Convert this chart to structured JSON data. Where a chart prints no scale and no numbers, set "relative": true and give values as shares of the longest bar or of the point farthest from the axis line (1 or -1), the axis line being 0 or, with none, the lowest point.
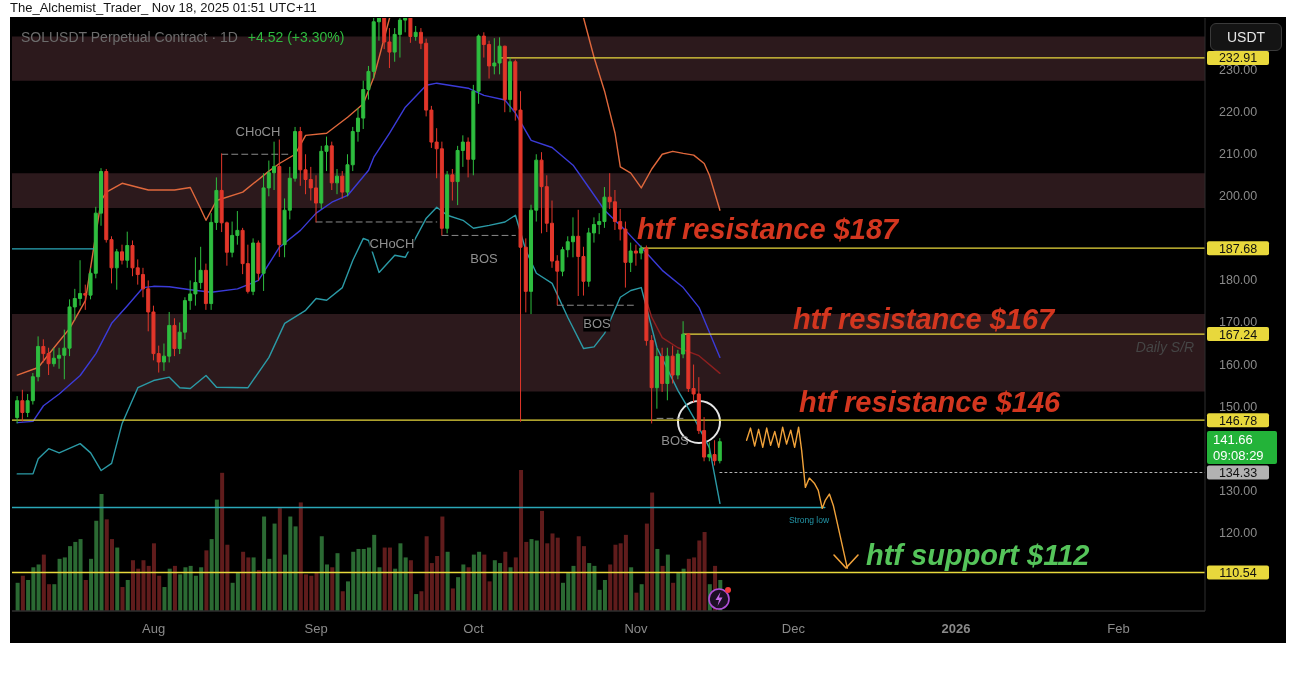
{
  "chart_data": [
    {
      "type": "candlestick",
      "title": "SOLUSDT Perpetual Contract · 1D",
      "subtitle": "The_Alchemist_Trader_ Nov 18, 2025 01:51 UTC+11",
      "x": [
        "2025-07-06",
        "2025-07-07",
        "2025-07-08",
        "2025-07-09",
        "2025-07-10",
        "2025-07-11",
        "2025-07-12",
        "2025-07-13",
        "2025-07-14",
        "2025-07-15",
        "2025-07-16",
        "2025-07-17",
        "2025-07-18",
        "2025-07-19",
        "2025-07-20",
        "2025-07-21",
        "2025-07-22",
        "2025-07-23",
        "2025-07-24",
        "2025-07-25",
        "2025-07-26",
        "2025-07-27",
        "2025-07-28",
        "2025-07-29",
        "2025-07-30",
        "2025-07-31",
        "2025-08-01",
        "2025-08-02",
        "2025-08-03",
        "2025-08-04",
        "2025-08-05",
        "2025-08-06",
        "2025-08-07",
        "2025-08-08",
        "2025-08-09",
        "2025-08-10",
        "2025-08-11",
        "2025-08-12",
        "2025-08-13",
        "2025-08-14",
        "2025-08-15",
        "2025-08-16",
        "2025-08-17",
        "2025-08-18",
        "2025-08-19",
        "2025-08-20",
        "2025-08-21",
        "2025-08-22",
        "2025-08-23",
        "2025-08-24",
        "2025-08-25",
        "2025-08-26",
        "2025-08-27",
        "2025-08-28",
        "2025-08-29",
        "2025-08-30",
        "2025-08-31",
        "2025-09-01",
        "2025-09-02",
        "2025-09-03",
        "2025-09-04",
        "2025-09-05",
        "2025-09-06",
        "2025-09-07",
        "2025-09-08",
        "2025-09-09",
        "2025-09-10",
        "2025-09-11",
        "2025-09-12",
        "2025-09-13",
        "2025-09-14",
        "2025-09-15",
        "2025-09-16",
        "2025-09-17",
        "2025-09-18",
        "2025-09-19",
        "2025-09-20",
        "2025-09-21",
        "2025-09-22",
        "2025-09-23",
        "2025-09-24",
        "2025-09-25",
        "2025-09-26",
        "2025-09-27",
        "2025-09-28",
        "2025-09-29",
        "2025-09-30",
        "2025-10-01",
        "2025-10-02",
        "2025-10-03",
        "2025-10-04",
        "2025-10-05",
        "2025-10-06",
        "2025-10-07",
        "2025-10-08",
        "2025-10-09",
        "2025-10-10",
        "2025-10-11",
        "2025-10-12",
        "2025-10-13",
        "2025-10-14",
        "2025-10-15",
        "2025-10-16",
        "2025-10-17",
        "2025-10-18",
        "2025-10-19",
        "2025-10-20",
        "2025-10-21",
        "2025-10-22",
        "2025-10-23",
        "2025-10-24",
        "2025-10-25",
        "2025-10-26",
        "2025-10-27",
        "2025-10-28",
        "2025-10-29",
        "2025-10-30",
        "2025-10-31",
        "2025-11-01",
        "2025-11-02",
        "2025-11-03",
        "2025-11-04",
        "2025-11-05",
        "2025-11-06",
        "2025-11-07",
        "2025-11-08",
        "2025-11-09",
        "2025-11-10",
        "2025-11-11",
        "2025-11-12",
        "2025-11-13",
        "2025-11-14",
        "2025-11-15",
        "2025-11-16",
        "2025-11-17"
      ],
      "ohlc": [
        [
          147.4,
          152.5,
          146,
          151.4
        ],
        [
          151.4,
          154,
          146.5,
          148.6
        ],
        [
          148.6,
          153,
          147.5,
          151.4
        ],
        [
          151.4,
          158,
          150.5,
          157.1
        ],
        [
          157.1,
          166.7,
          156,
          164.3
        ],
        [
          164.3,
          166,
          160.5,
          162.6
        ],
        [
          162.6,
          164,
          157.5,
          160.2
        ],
        [
          160.2,
          164,
          159.5,
          161.5
        ],
        [
          161.5,
          164,
          159,
          162.2
        ],
        [
          162.2,
          168.3,
          156.5,
          163.9
        ],
        [
          163.9,
          175.5,
          162,
          173.7
        ],
        [
          173.7,
          178,
          170.5,
          175.7
        ],
        [
          175.7,
          184.8,
          174,
          176.9
        ],
        [
          176.9,
          179,
          173,
          176.5
        ],
        [
          176.5,
          183,
          175.5,
          181.7
        ],
        [
          181.7,
          197.5,
          180.5,
          196
        ],
        [
          196,
          206.7,
          193,
          205.9
        ],
        [
          205.9,
          206.5,
          189,
          189.7
        ],
        [
          189.7,
          190.5,
          179.3,
          183
        ],
        [
          183,
          187.5,
          177.8,
          186.8
        ],
        [
          186.8,
          188.5,
          183.8,
          184.8
        ],
        [
          184.8,
          191.6,
          183,
          188.3
        ],
        [
          188.3,
          189.5,
          181,
          183
        ],
        [
          183,
          185,
          179,
          181.4
        ],
        [
          181.4,
          183,
          176,
          178
        ],
        [
          178,
          180,
          167.9,
          172.5
        ],
        [
          172.5,
          174,
          161,
          162.6
        ],
        [
          162.6,
          164.5,
          158.1,
          160.6
        ],
        [
          160.6,
          165,
          158.5,
          162
        ],
        [
          162,
          172.5,
          160.5,
          169.3
        ],
        [
          169.3,
          171,
          162,
          163.8
        ],
        [
          163.8,
          170,
          162.5,
          167.7
        ],
        [
          167.7,
          176,
          166,
          175.2
        ],
        [
          175.2,
          180,
          173,
          176.8
        ],
        [
          176.8,
          185.5,
          174,
          179.5
        ],
        [
          179.5,
          188,
          178,
          182.4
        ],
        [
          182.4,
          184,
          173,
          174.5
        ],
        [
          174.5,
          196,
          173,
          193.8
        ],
        [
          193.8,
          204.5,
          192,
          201.4
        ],
        [
          201.4,
          210.2,
          191.5,
          193.7
        ],
        [
          193.7,
          194,
          183.5,
          186.7
        ],
        [
          186.7,
          194,
          185.5,
          190.7
        ],
        [
          190.7,
          196.5,
          188.5,
          191.9
        ],
        [
          191.9,
          192.5,
          181.5,
          184
        ],
        [
          184,
          188.5,
          176.9,
          177.4
        ],
        [
          177.4,
          190,
          176.5,
          188.9
        ],
        [
          188.9,
          189.5,
          179.9,
          181.7
        ],
        [
          181.7,
          205.5,
          177.5,
          202
        ],
        [
          202,
          208.5,
          200,
          205.6
        ],
        [
          205.6,
          213,
          201.5,
          207.1
        ],
        [
          207.1,
          213.5,
          185.6,
          188.5
        ],
        [
          188.5,
          199.5,
          185.5,
          196.7
        ],
        [
          196.7,
          207,
          194.5,
          204.3
        ],
        [
          204.3,
          216.5,
          203.5,
          215.4
        ],
        [
          215.4,
          216.5,
          202.5,
          206.3
        ],
        [
          206.3,
          210,
          200.5,
          204
        ],
        [
          204,
          207,
          199,
          202
        ],
        [
          202,
          205,
          193.8,
          198.4
        ],
        [
          198.4,
          212,
          197,
          210.7
        ],
        [
          210.7,
          214.2,
          206,
          212
        ],
        [
          212,
          213,
          201.5,
          203.2
        ],
        [
          203.2,
          206.5,
          200.5,
          204.8
        ],
        [
          204.8,
          206,
          199.5,
          201
        ],
        [
          201,
          210,
          200,
          207.5
        ],
        [
          207.5,
          216.5,
          206,
          215.4
        ],
        [
          215.4,
          221,
          213,
          218.6
        ],
        [
          218.6,
          227.5,
          216,
          225.4
        ],
        [
          225.4,
          231,
          223,
          229.7
        ],
        [
          229.7,
          242.4,
          228,
          241.5
        ],
        [
          241.5,
          242.4,
          237,
          242.4
        ],
        [
          242.4,
          242.4,
          235,
          236.7
        ],
        [
          236.7,
          240,
          230.5,
          234.3
        ],
        [
          234.3,
          240,
          232,
          238.5
        ],
        [
          238.5,
          242.4,
          233,
          241.9
        ],
        [
          241.9,
          242.4,
          239,
          242.4
        ],
        [
          242.4,
          242.4,
          236.5,
          238
        ],
        [
          238,
          240.5,
          237,
          239
        ],
        [
          239,
          240,
          235,
          236.4
        ],
        [
          236.4,
          237.5,
          219,
          220.5
        ],
        [
          220.5,
          221.5,
          211.5,
          212.9
        ],
        [
          212.9,
          216.2,
          204.3,
          211.3
        ],
        [
          211.3,
          213,
          190.7,
          192.4
        ],
        [
          192.4,
          206,
          191.2,
          205.1
        ],
        [
          205.1,
          206.5,
          199,
          203.5
        ],
        [
          203.5,
          212,
          197.9,
          210.9
        ],
        [
          210.9,
          214.5,
          207,
          212.9
        ],
        [
          212.9,
          214,
          204.5,
          208.8
        ],
        [
          208.8,
          226.5,
          205,
          225
        ],
        [
          225,
          238.5,
          222,
          238.1
        ],
        [
          238.1,
          239,
          233,
          236.1
        ],
        [
          236.1,
          237,
          228,
          231
        ],
        [
          231,
          237.6,
          229,
          231.7
        ],
        [
          231.7,
          237.8,
          229,
          235.7
        ],
        [
          235.7,
          235.8,
          220,
          223
        ],
        [
          223,
          233,
          220,
          232
        ],
        [
          232,
          232.5,
          218,
          220.5
        ],
        [
          220.5,
          225,
          146.4,
          187.9
        ],
        [
          187.9,
          190,
          172.4,
          177.4
        ],
        [
          177.4,
          198,
          172,
          196.7
        ],
        [
          196.7,
          210,
          194,
          208.6
        ],
        [
          208.6,
          210.5,
          191.2,
          202.3
        ],
        [
          202.3,
          205,
          191.5,
          193.6
        ],
        [
          193.6,
          199,
          183,
          184.6
        ],
        [
          184.6,
          186,
          174.1,
          182.2
        ],
        [
          182.2,
          188,
          181,
          187.3
        ],
        [
          187.3,
          190.5,
          185.5,
          189.2
        ],
        [
          189.2,
          195,
          185.5,
          190.5
        ],
        [
          190.5,
          196.8,
          176.3,
          185.7
        ],
        [
          185.7,
          188,
          176.4,
          179.8
        ],
        [
          179.8,
          192.5,
          178.5,
          191.3
        ],
        [
          191.3,
          195,
          189,
          193.3
        ],
        [
          193.3,
          196,
          191,
          194
        ],
        [
          194,
          202.2,
          192.5,
          199.8
        ],
        [
          199.8,
          205.5,
          197,
          198.7
        ],
        [
          198.7,
          201.5,
          192,
          194
        ],
        [
          194,
          197,
          189.5,
          192.2
        ],
        [
          192.2,
          194,
          178.3,
          184.3
        ],
        [
          184.3,
          189,
          182,
          187
        ],
        [
          187,
          188.5,
          183.5,
          186.5
        ],
        [
          186.5,
          188.3,
          185,
          187.7
        ],
        [
          187.7,
          188.3,
          164.5,
          165.7
        ],
        [
          165.7,
          167,
          146,
          154.5
        ],
        [
          154.5,
          163.9,
          149.5,
          161.9
        ],
        [
          161.9,
          164,
          153.5,
          155.5
        ],
        [
          155.5,
          164,
          151.5,
          162
        ],
        [
          162,
          164.5,
          155.5,
          157.5
        ],
        [
          157.5,
          163.5,
          156.5,
          162.5
        ],
        [
          162.5,
          170.3,
          161.5,
          167.2
        ],
        [
          167.2,
          167.5,
          153.5,
          154.3
        ],
        [
          154.3,
          160,
          151,
          153
        ],
        [
          153,
          157,
          143.5,
          144.3
        ],
        [
          144.3,
          147.5,
          137,
          138
        ],
        [
          138,
          141.5,
          137,
          138.6
        ],
        [
          138.6,
          142,
          136,
          137.14
        ],
        [
          137.14,
          142.5,
          136.5,
          141.66
        ]
      ],
      "colors": [
        "#2ebd3f",
        "#e2362a",
        "#2ebd3f",
        "#2ebd3f",
        "#2ebd3f",
        "#e2362a",
        "#e2362a",
        "#2ebd3f",
        "#2ebd3f",
        "#2ebd3f",
        "#2ebd3f",
        "#2ebd3f",
        "#2ebd3f",
        "#e2362a",
        "#2ebd3f",
        "#2ebd3f",
        "#2ebd3f",
        "#e2362a",
        "#e2362a",
        "#2ebd3f",
        "#e2362a",
        "#2ebd3f",
        "#e2362a",
        "#e2362a",
        "#e2362a",
        "#e2362a",
        "#e2362a",
        "#e2362a",
        "#2ebd3f",
        "#2ebd3f",
        "#e2362a",
        "#2ebd3f",
        "#2ebd3f",
        "#2ebd3f",
        "#2ebd3f",
        "#2ebd3f",
        "#e2362a",
        "#2ebd3f",
        "#2ebd3f",
        "#e2362a",
        "#e2362a",
        "#2ebd3f",
        "#2ebd3f",
        "#e2362a",
        "#e2362a",
        "#2ebd3f",
        "#e2362a",
        "#2ebd3f",
        "#2ebd3f",
        "#2ebd3f",
        "#e2362a",
        "#2ebd3f",
        "#2ebd3f",
        "#2ebd3f",
        "#e2362a",
        "#e2362a",
        "#e2362a",
        "#e2362a",
        "#2ebd3f",
        "#2ebd3f",
        "#e2362a",
        "#2ebd3f",
        "#e2362a",
        "#2ebd3f",
        "#2ebd3f",
        "#2ebd3f",
        "#2ebd3f",
        "#2ebd3f",
        "#2ebd3f",
        "#2ebd3f",
        "#e2362a",
        "#e2362a",
        "#2ebd3f",
        "#2ebd3f",
        "#2ebd3f",
        "#e2362a",
        "#2ebd3f",
        "#e2362a",
        "#e2362a",
        "#e2362a",
        "#e2362a",
        "#e2362a",
        "#2ebd3f",
        "#e2362a",
        "#2ebd3f",
        "#2ebd3f",
        "#e2362a",
        "#2ebd3f",
        "#2ebd3f",
        "#e2362a",
        "#e2362a",
        "#2ebd3f",
        "#2ebd3f",
        "#e2362a",
        "#2ebd3f",
        "#e2362a",
        "#e2362a",
        "#e2362a",
        "#2ebd3f",
        "#2ebd3f",
        "#e2362a",
        "#e2362a",
        "#e2362a",
        "#e2362a",
        "#2ebd3f",
        "#2ebd3f",
        "#2ebd3f",
        "#e2362a",
        "#e2362a",
        "#2ebd3f",
        "#2ebd3f",
        "#2ebd3f",
        "#2ebd3f",
        "#e2362a",
        "#e2362a",
        "#e2362a",
        "#e2362a",
        "#2ebd3f",
        "#e2362a",
        "#2ebd3f",
        "#e2362a",
        "#e2362a",
        "#2ebd3f",
        "#e2362a",
        "#2ebd3f",
        "#e2362a",
        "#2ebd3f",
        "#2ebd3f",
        "#e2362a",
        "#e2362a",
        "#e2362a",
        "#e2362a",
        "#2ebd3f",
        "#e2362a",
        "#2ebd3f"
      ],
      "series": [
        {
          "type": "line",
          "color": "#e0683c",
          "x": [
            "2025-07-06",
            "2025-07-10",
            "2025-07-13",
            "2025-07-16",
            "2025-07-19",
            "2025-07-22",
            "2025-07-23",
            "2025-07-26",
            "2025-07-31",
            "2025-08-05",
            "2025-08-08",
            "2025-08-10",
            "2025-08-11",
            "2025-08-13",
            "2025-08-18",
            "2025-08-23",
            "2025-08-25",
            "2025-08-28",
            "2025-08-30",
            "2025-09-03",
            "2025-09-07",
            "2025-09-10",
            "2025-09-12",
            "2025-09-15",
            "2025-10-01",
            "2025-10-22",
            "2025-10-24",
            "2025-10-26",
            "2025-10-28",
            "2025-10-29",
            "2025-10-31",
            "2025-11-02",
            "2025-11-04",
            "2025-11-06",
            "2025-11-08",
            "2025-11-10",
            "2025-11-12",
            "2025-11-14",
            "2025-11-15",
            "2025-11-17"
          ],
          "values": [
            157.5,
            159.3,
            164,
            168.6,
            175.2,
            199,
            201,
            203.1,
            201.5,
            201.5,
            202.1,
            197,
            194.3,
            199,
            201,
            206,
            207.8,
            210,
            214.5,
            215,
            218.8,
            222,
            228.3,
            242.4,
            null,
            242.4,
            233,
            225,
            215,
            207,
            205.5,
            202,
            206.5,
            210,
            210.7,
            210.2,
            209.8,
            207.8,
            205,
            196.7
          ]
        },
        {
          "type": "line",
          "color": "#3b3bd8",
          "x": [
            "2025-07-06",
            "2025-07-09",
            "2025-07-11",
            "2025-07-14",
            "2025-07-18",
            "2025-07-21",
            "2025-07-24",
            "2025-07-27",
            "2025-07-30",
            "2025-08-01",
            "2025-08-04",
            "2025-08-08",
            "2025-08-12",
            "2025-08-17",
            "2025-08-21",
            "2025-08-25",
            "2025-08-29",
            "2025-09-01",
            "2025-09-04",
            "2025-09-07",
            "2025-09-11",
            "2025-09-12",
            "2025-09-15",
            "2025-09-18",
            "2025-09-22",
            "2025-09-24",
            "2025-09-30",
            "2025-10-03",
            "2025-10-07",
            "2025-10-09",
            "2025-10-12",
            "2025-10-16",
            "2025-10-20",
            "2025-10-23",
            "2025-10-26",
            "2025-10-30",
            "2025-11-02",
            "2025-11-06",
            "2025-11-10",
            "2025-11-13",
            "2025-11-17"
          ],
          "values": [
            146.2,
            146.5,
            150.2,
            153,
            157.4,
            162.6,
            169.8,
            174,
            178.3,
            178.6,
            178.5,
            177.8,
            177.2,
            178,
            180,
            187.9,
            191.9,
            196,
            198.6,
            200.2,
            206.2,
            209.3,
            215,
            221.2,
            226.4,
            226.9,
            225.7,
            224,
            222.9,
            219.8,
            213.3,
            211.6,
            207.4,
            202.1,
            196.7,
            191.9,
            187.9,
            182.4,
            178.3,
            173.6,
            161.7
          ]
        },
        {
          "type": "line",
          "color": "#2b9aa6",
          "x": [
            "2025-07-06",
            "2025-07-09",
            "2025-07-10",
            "2025-07-12",
            "2025-07-14",
            "2025-07-18",
            "2025-07-20",
            "2025-07-22",
            "2025-07-24",
            "2025-07-26",
            "2025-07-29",
            "2025-08-01",
            "2025-08-04",
            "2025-08-06",
            "2025-08-08",
            "2025-08-11",
            "2025-08-13",
            "2025-08-19",
            "2025-08-23",
            "2025-08-26",
            "2025-08-30",
            "2025-09-01",
            "2025-09-03",
            "2025-09-06",
            "2025-09-08",
            "2025-09-10",
            "2025-09-11",
            "2025-09-13",
            "2025-09-16",
            "2025-09-18",
            "2025-09-22",
            "2025-09-24",
            "2025-09-26",
            "2025-09-29",
            "2025-10-01",
            "2025-10-04",
            "2025-10-07",
            "2025-10-09",
            "2025-10-11",
            "2025-10-13",
            "2025-10-16",
            "2025-10-19",
            "2025-10-22",
            "2025-10-24",
            "2025-10-26",
            "2025-10-29",
            "2025-10-31",
            "2025-11-02",
            "2025-11-05",
            "2025-11-09",
            "2025-11-12",
            "2025-11-15",
            "2025-11-17"
          ],
          "values": [
            134,
            134,
            137.6,
            140,
            139,
            141.2,
            139,
            134.8,
            136.5,
            146,
            154.5,
            156.2,
            157,
            154.5,
            154.3,
            157.4,
            154.6,
            154.5,
            161.7,
            169.8,
            172.9,
            175.7,
            175.3,
            178.3,
            184.8,
            190,
            189.5,
            181.9,
            186,
            185.5,
            194.8,
            197.4,
            195.5,
            194.3,
            192.4,
            193.1,
            193.9,
            195.5,
            187.1,
            181.7,
            179.3,
            171.2,
            163.8,
            164.2,
            167.4,
            176,
            177.6,
            178.3,
            164,
            153.8,
            147.4,
            140.2,
            127
          ]
        },
        {
          "type": "line",
          "color": "#8e1f1f",
          "x": [
            "2025-11-03",
            "2025-11-04",
            "2025-11-06",
            "2025-11-09",
            "2025-11-13",
            "2025-11-17"
          ],
          "values": [
            175.2,
            171.2,
            166.4,
            164,
            162.1,
            157.9
          ]
        },
        {
          "type": "line",
          "color": "#8a8a8a",
          "line_style": "dashed",
          "x": [
            "2025-08-14",
            "2025-08-27"
          ],
          "values": [
            210,
            210
          ]
        },
        {
          "type": "line",
          "color": "#8a8a8a",
          "line_style": "dashed",
          "x": [
            "2025-09-01",
            "2025-09-24"
          ],
          "values": [
            193.9,
            193.9
          ]
        },
        {
          "type": "line",
          "color": "#8a8a8a",
          "line_style": "dashed",
          "x": [
            "2025-09-25",
            "2025-10-09"
          ],
          "values": [
            190.7,
            190.7
          ]
        },
        {
          "type": "line",
          "color": "#8a8a8a",
          "line_style": "dashed",
          "x": [
            "2025-10-17",
            "2025-11-01"
          ],
          "values": [
            174.1,
            174.1
          ]
        },
        {
          "type": "line",
          "color": "#8a8a8a",
          "line_style": "dashed",
          "x": [
            "2025-11-05",
            "2025-11-10"
          ],
          "values": [
            147.2,
            147.2
          ]
        },
        {
          "type": "line",
          "color": "#2aa7b8",
          "x": [
            "2025-07-05",
            "2025-07-21"
          ],
          "values": [
            187.5,
            187.5
          ]
        },
        {
          "type": "line",
          "color": "#2aa7b8",
          "x": [
            "2025-07-05",
            "2025-12-07"
          ],
          "values": [
            126,
            126
          ]
        },
        {
          "type": "line",
          "color": "#b2b2b2",
          "line_style": "dotted",
          "x": [
            "2025-11-17",
            "2026-02-17T12:00"
          ],
          "values": [
            134.33,
            134.33
          ],
          "value_labels": [
            null,
            "134.33"
          ]
        },
        {
          "type": "line",
          "color": "#e8d83c",
          "x": [
            "2025-10-06",
            "2026-02-17T12:00"
          ],
          "values": [
            232.91,
            232.91
          ],
          "value_labels": [
            null,
            "232.91"
          ]
        },
        {
          "type": "line",
          "color": "#e8d83c",
          "x": [
            "2025-11-02",
            "2026-02-17T12:00"
          ],
          "values": [
            187.68,
            187.68
          ],
          "value_labels": [
            null,
            "187.68"
          ]
        },
        {
          "type": "line",
          "color": "#e8d83c",
          "x": [
            "2025-11-10",
            "2026-02-17T12:00"
          ],
          "values": [
            167.24,
            167.24
          ],
          "value_labels": [
            null,
            "167.24"
          ]
        },
        {
          "type": "line",
          "color": "#e8d83c",
          "x": [
            "2025-07-05",
            "2026-02-17T12:00"
          ],
          "values": [
            146.78,
            146.78
          ],
          "value_labels": [
            null,
            "146.78"
          ]
        },
        {
          "type": "line",
          "color": "#e8d83c",
          "x": [
            "2025-07-05",
            "2026-02-17T12:00"
          ],
          "values": [
            110.54,
            110.54
          ],
          "value_labels": [
            null,
            "110.54"
          ]
        },
        {
          "type": "line",
          "color": "#f0a23a",
          "x": [
            "2025-11-22T02:00",
            "2025-11-22T20:00",
            "2025-11-23T15:00",
            "2025-11-24T09:00",
            "2025-11-25T04:00",
            "2025-11-25T22:00",
            "2025-11-26T16:00",
            "2025-11-27T11:00",
            "2025-11-28T05:00",
            "2025-11-28T23:00",
            "2025-11-29T17:00",
            "2025-11-30T12:00",
            "2025-12-01T06:00",
            "2025-12-02T00:00",
            "2025-12-02T14:00",
            "2025-12-03T07:00",
            "2025-12-04T01:00",
            "2025-12-05T00:00",
            "2025-12-05T18:00",
            "2025-12-06T12:00",
            "2025-12-07T02:00",
            "2025-12-07T21:00",
            "2025-12-08T15:00",
            "2025-12-09T01:00",
            "2025-12-11T07:00"
          ],
          "values": [
            142,
            144.9,
            140.6,
            144.6,
            140.3,
            144.9,
            140.8,
            144.1,
            140.3,
            145.1,
            141.1,
            144.4,
            140.3,
            145.1,
            139.6,
            130.8,
            133,
            131.8,
            130.1,
            125.8,
            127.7,
            129.2,
            126.5,
            124.2,
            111.6
          ]
        }
      ],
      "bands": [
        {
          "axis": "y",
          "from": 227.5,
          "to": 238,
          "color": "#2c191c"
        },
        {
          "axis": "y",
          "from": 197.2,
          "to": 205.5,
          "color": "#2c191c"
        },
        {
          "axis": "y",
          "from": 153.6,
          "to": 172,
          "color": "#2c191c"
        }
      ],
      "xlim": [
        "2025-07-05",
        "2026-02-17T12:00"
      ],
      "xticks": [
        {
          "value": "2025-08-01",
          "label": "Aug"
        },
        {
          "value": "2025-09-01",
          "label": "Sep"
        },
        {
          "value": "2025-10-01",
          "label": "Oct"
        },
        {
          "value": "2025-11-01",
          "label": "Nov"
        },
        {
          "value": "2025-12-01",
          "label": "Dec"
        },
        {
          "value": "2026-01-01",
          "label": "2026"
        },
        {
          "value": "2026-02-01",
          "label": "Feb"
        }
      ],
      "ylim": [
        101.4,
        242.4
      ],
      "yticks": [
        {
          "value": 120,
          "label": "120.00"
        },
        {
          "value": 130,
          "label": "130.00"
        },
        {
          "value": 150,
          "label": "150.00"
        },
        {
          "value": 160,
          "label": "160.00"
        },
        {
          "value": 170,
          "label": "170.00"
        },
        {
          "value": 180,
          "label": "180.00"
        },
        {
          "value": 200,
          "label": "200.00"
        },
        {
          "value": 210,
          "label": "210.00"
        },
        {
          "value": 220,
          "label": "220.00"
        },
        {
          "value": 230,
          "label": "230.00"
        }
      ],
      "annotations": [
        "+4.52 (+3.30%)",
        "USDT",
        "09:08:29",
        "141.66",
        "htf resistance $187",
        "htf resistance $167",
        "htf resistance $146",
        "htf support $112",
        "CHoCH",
        "CHoCH",
        "BOS",
        "BOS",
        "BOS",
        "Daily S/R",
        "Strong low"
      ]
    },
    {
      "type": "bar",
      "relative": true,
      "tick_labels": false,
      "x": [
        "2025-07-06",
        "2025-07-07",
        "2025-07-08",
        "2025-07-09",
        "2025-07-10",
        "2025-07-11",
        "2025-07-12",
        "2025-07-13",
        "2025-07-14",
        "2025-07-15",
        "2025-07-16",
        "2025-07-17",
        "2025-07-18",
        "2025-07-19",
        "2025-07-20",
        "2025-07-21",
        "2025-07-22",
        "2025-07-23",
        "2025-07-24",
        "2025-07-25",
        "2025-07-26",
        "2025-07-27",
        "2025-07-28",
        "2025-07-29",
        "2025-07-30",
        "2025-07-31",
        "2025-08-01",
        "2025-08-02",
        "2025-08-03",
        "2025-08-04",
        "2025-08-05",
        "2025-08-06",
        "2025-08-07",
        "2025-08-08",
        "2025-08-09",
        "2025-08-10",
        "2025-08-11",
        "2025-08-12",
        "2025-08-13",
        "2025-08-14",
        "2025-08-15",
        "2025-08-16",
        "2025-08-17",
        "2025-08-18",
        "2025-08-19",
        "2025-08-20",
        "2025-08-21",
        "2025-08-22",
        "2025-08-23",
        "2025-08-24",
        "2025-08-25",
        "2025-08-26",
        "2025-08-27",
        "2025-08-28",
        "2025-08-29",
        "2025-08-30",
        "2025-08-31",
        "2025-09-01",
        "2025-09-02",
        "2025-09-03",
        "2025-09-04",
        "2025-09-05",
        "2025-09-06",
        "2025-09-07",
        "2025-09-08",
        "2025-09-09",
        "2025-09-10",
        "2025-09-11",
        "2025-09-12",
        "2025-09-13",
        "2025-09-14",
        "2025-09-15",
        "2025-09-16",
        "2025-09-17",
        "2025-09-18",
        "2025-09-19",
        "2025-09-20",
        "2025-09-21",
        "2025-09-22",
        "2025-09-23",
        "2025-09-24",
        "2025-09-25",
        "2025-09-26",
        "2025-09-27",
        "2025-09-28",
        "2025-09-29",
        "2025-09-30",
        "2025-10-01",
        "2025-10-02",
        "2025-10-03",
        "2025-10-04",
        "2025-10-05",
        "2025-10-06",
        "2025-10-07",
        "2025-10-08",
        "2025-10-09",
        "2025-10-10",
        "2025-10-11",
        "2025-10-12",
        "2025-10-13",
        "2025-10-14",
        "2025-10-15",
        "2025-10-16",
        "2025-10-17",
        "2025-10-18",
        "2025-10-19",
        "2025-10-20",
        "2025-10-21",
        "2025-10-22",
        "2025-10-23",
        "2025-10-24",
        "2025-10-25",
        "2025-10-26",
        "2025-10-27",
        "2025-10-28",
        "2025-10-29",
        "2025-10-30",
        "2025-10-31",
        "2025-11-01",
        "2025-11-02",
        "2025-11-03",
        "2025-11-04",
        "2025-11-05",
        "2025-11-06",
        "2025-11-07",
        "2025-11-08",
        "2025-11-09",
        "2025-11-10",
        "2025-11-11",
        "2025-11-12",
        "2025-11-13",
        "2025-11-14",
        "2025-11-15",
        "2025-11-16",
        "2025-11-17"
      ],
      "values": [
        0.2,
        0.25,
        0.22,
        0.31,
        0.33,
        0.4,
        0.19,
        0.19,
        0.37,
        0.38,
        0.46,
        0.49,
        0.51,
        0.22,
        0.37,
        0.64,
        0.83,
        0.65,
        0.51,
        0.45,
        0.17,
        0.22,
        0.36,
        0.3,
        0.36,
        0.32,
        0.48,
        0.25,
        0.17,
        0.3,
        0.32,
        0.26,
        0.31,
        0.32,
        0.25,
        0.31,
        0.43,
        0.51,
        0.79,
        0.98,
        0.47,
        0.2,
        0.27,
        0.42,
        0.38,
        0.38,
        0.29,
        0.67,
        0.37,
        0.62,
        0.73,
        0.4,
        0.67,
        0.6,
        0.77,
        0.26,
        0.25,
        0.27,
        0.53,
        0.33,
        0.31,
        0.41,
        0.14,
        0.21,
        0.42,
        0.44,
        0.44,
        0.45,
        0.54,
        0.31,
        0.45,
        0.45,
        0.3,
        0.48,
        0.38,
        0.36,
        0.12,
        0.14,
        0.53,
        0.34,
        0.39,
        0.67,
        0.42,
        0.16,
        0.24,
        0.33,
        0.31,
        0.4,
        0.42,
        0.4,
        0.21,
        0.36,
        0.34,
        0.42,
        0.31,
        0.38,
        1,
        0.49,
        0.51,
        0.5,
        0.71,
        0.48,
        0.55,
        0.52,
        0.2,
        0.27,
        0.32,
        0.53,
        0.46,
        0.34,
        0.32,
        0.15,
        0.22,
        0.33,
        0.47,
        0.48,
        0.54,
        0.31,
        0.13,
        0.19,
        0.62,
        0.84,
        0.44,
        0.32,
        0.4,
        0.2,
        0.27,
        0.3,
        0.37,
        0.38,
        0.5,
        0.56,
        0.19,
        0.32,
        0.22
      ],
      "colors": [
        "#2b6a33",
        "#601c1c",
        "#2b6a33",
        "#2b6a33",
        "#2b6a33",
        "#601c1c",
        "#601c1c",
        "#2b6a33",
        "#2b6a33",
        "#2b6a33",
        "#2b6a33",
        "#2b6a33",
        "#2b6a33",
        "#601c1c",
        "#2b6a33",
        "#2b6a33",
        "#2b6a33",
        "#601c1c",
        "#601c1c",
        "#2b6a33",
        "#601c1c",
        "#2b6a33",
        "#601c1c",
        "#601c1c",
        "#601c1c",
        "#601c1c",
        "#601c1c",
        "#601c1c",
        "#2b6a33",
        "#2b6a33",
        "#601c1c",
        "#2b6a33",
        "#2b6a33",
        "#2b6a33",
        "#2b6a33",
        "#2b6a33",
        "#601c1c",
        "#2b6a33",
        "#2b6a33",
        "#601c1c",
        "#601c1c",
        "#2b6a33",
        "#2b6a33",
        "#601c1c",
        "#601c1c",
        "#2b6a33",
        "#601c1c",
        "#2b6a33",
        "#2b6a33",
        "#2b6a33",
        "#601c1c",
        "#2b6a33",
        "#2b6a33",
        "#2b6a33",
        "#601c1c",
        "#601c1c",
        "#601c1c",
        "#601c1c",
        "#2b6a33",
        "#2b6a33",
        "#601c1c",
        "#2b6a33",
        "#601c1c",
        "#2b6a33",
        "#2b6a33",
        "#2b6a33",
        "#2b6a33",
        "#2b6a33",
        "#2b6a33",
        "#2b6a33",
        "#601c1c",
        "#601c1c",
        "#2b6a33",
        "#2b6a33",
        "#2b6a33",
        "#601c1c",
        "#2b6a33",
        "#601c1c",
        "#601c1c",
        "#601c1c",
        "#601c1c",
        "#601c1c",
        "#2b6a33",
        "#601c1c",
        "#2b6a33",
        "#2b6a33",
        "#601c1c",
        "#2b6a33",
        "#2b6a33",
        "#601c1c",
        "#601c1c",
        "#2b6a33",
        "#2b6a33",
        "#601c1c",
        "#2b6a33",
        "#601c1c",
        "#601c1c",
        "#601c1c",
        "#2b6a33",
        "#2b6a33",
        "#601c1c",
        "#601c1c",
        "#601c1c",
        "#601c1c",
        "#2b6a33",
        "#2b6a33",
        "#2b6a33",
        "#601c1c",
        "#601c1c",
        "#2b6a33",
        "#2b6a33",
        "#2b6a33",
        "#2b6a33",
        "#601c1c",
        "#601c1c",
        "#601c1c",
        "#601c1c",
        "#2b6a33",
        "#601c1c",
        "#2b6a33",
        "#601c1c",
        "#601c1c",
        "#2b6a33",
        "#601c1c",
        "#2b6a33",
        "#601c1c",
        "#2b6a33",
        "#2b6a33",
        "#601c1c",
        "#601c1c",
        "#601c1c",
        "#601c1c",
        "#2b6a33",
        "#601c1c",
        "#2b6a33"
      ],
      "xlim": [
        "2025-07-05",
        "2026-02-17T12:00"
      ]
    }
  ]
}
